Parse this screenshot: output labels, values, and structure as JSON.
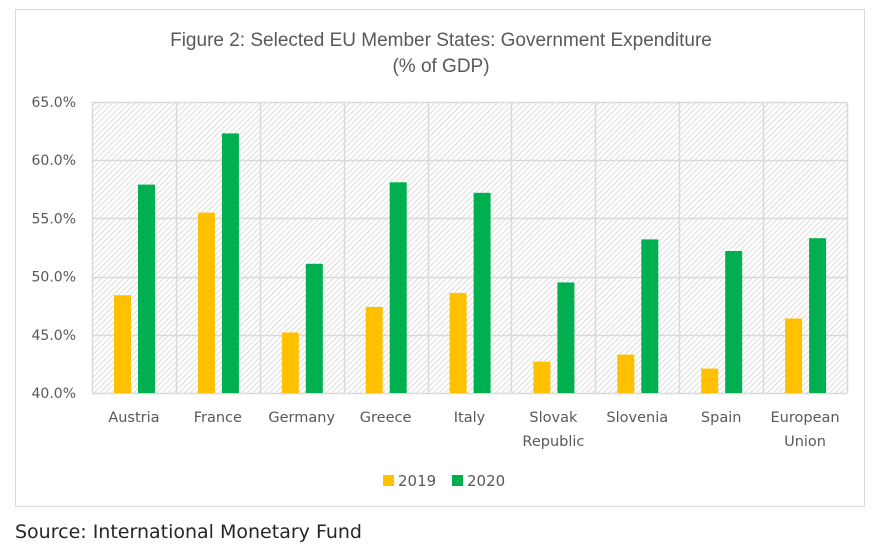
{
  "chart_data": {
    "type": "bar",
    "title": [
      "Figure 2: Selected EU Member States: Government Expenditure",
      "(% of GDP)"
    ],
    "xlabel": "",
    "ylabel": "",
    "ylim": [
      40,
      65
    ],
    "yticks": [
      40,
      45,
      50,
      55,
      60,
      65
    ],
    "ytick_labels": [
      "40.0%",
      "45.0%",
      "50.0%",
      "55.0%",
      "60.0%",
      "65.0%"
    ],
    "grid": true,
    "categories": [
      [
        "Austria"
      ],
      [
        "France"
      ],
      [
        "Germany"
      ],
      [
        "Greece"
      ],
      [
        "Italy"
      ],
      [
        "Slovak",
        "Republic"
      ],
      [
        "Slovenia"
      ],
      [
        "Spain"
      ],
      [
        "European",
        "Union"
      ]
    ],
    "series": [
      {
        "name": "2019",
        "color": "#FFC000",
        "values": [
          48.4,
          55.5,
          45.2,
          47.4,
          48.6,
          42.7,
          43.3,
          42.1,
          46.4
        ]
      },
      {
        "name": "2020",
        "color": "#00B050",
        "values": [
          57.9,
          62.3,
          51.1,
          58.1,
          57.2,
          49.5,
          53.2,
          52.2,
          53.3
        ]
      }
    ],
    "legend_position": "bottom"
  },
  "source": "Source: International Monetary Fund"
}
